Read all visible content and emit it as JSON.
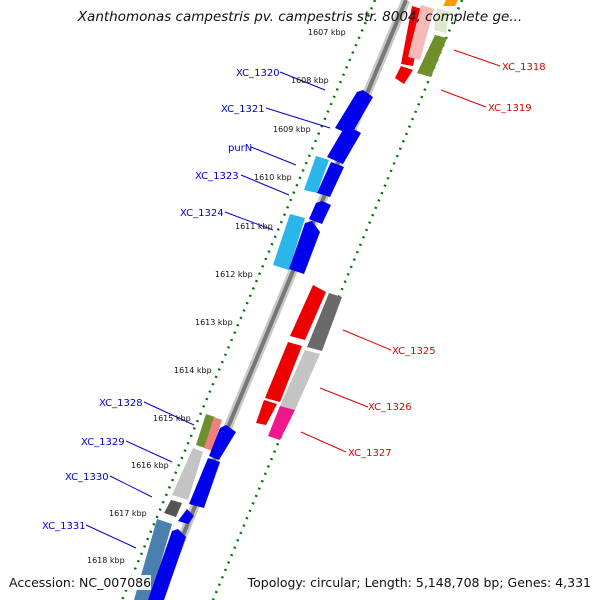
{
  "title": "Xanthomonas campestris pv. campestris str. 8004, complete ge...",
  "accession": "Accession: NC_007086",
  "topology": "Topology: circular; Length: 5,148,708 bp; Genes: 4,331",
  "colors": {
    "blue": "#0000ee",
    "cyan": "#29b6ea",
    "red": "#ee0000",
    "pink": "#f0168c",
    "gray": "#7a7a7a",
    "lightgray": "#c4c4c4",
    "olive": "#6e8f2a",
    "salmon": "#f08080",
    "orange": "#ff9900",
    "steel": "#4a7fae",
    "label_blue": "#0000cc",
    "label_red": "#dd0000",
    "tick_green": "#007700"
  },
  "kbp_ticks": [
    "1607 kbp",
    "1608 kbp",
    "1609 kbp",
    "1610 kbp",
    "1611 kbp",
    "1612 kbp",
    "1613 kbp",
    "1614 kbp",
    "1615 kbp",
    "1616 kbp",
    "1617 kbp",
    "1618 kbp"
  ],
  "left_labels": [
    "XC_1320",
    "XC_1321",
    "purN",
    "XC_1323",
    "XC_1324",
    "XC_1328",
    "XC_1329",
    "XC_1330",
    "XC_1331"
  ],
  "right_labels": [
    "XC_1318",
    "XC_1319",
    "XC_1325",
    "XC_1326",
    "XC_1327"
  ]
}
